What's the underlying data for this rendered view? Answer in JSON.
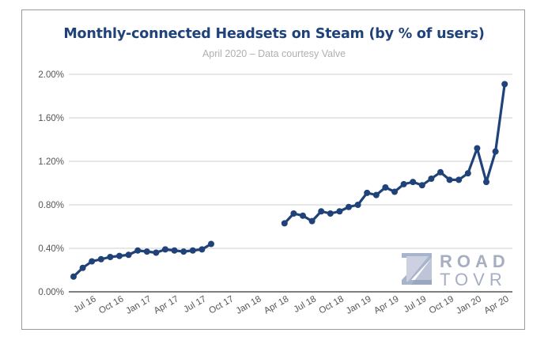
{
  "chart_data": {
    "type": "line",
    "title": "Monthly-connected Headsets on Steam (by % of users)",
    "subtitle": "April 2020 – Data courtesy Valve",
    "xlabel": "",
    "ylabel": "",
    "ylim": [
      0,
      2.0
    ],
    "yticks": [
      0,
      0.4,
      0.8,
      1.2,
      1.6,
      2.0
    ],
    "ytick_labels": [
      "0.00%",
      "0.40%",
      "0.80%",
      "1.20%",
      "1.60%",
      "2.00%"
    ],
    "grid": true,
    "legend": "none",
    "x": [
      "May 16",
      "Jun 16",
      "Jul 16",
      "Aug 16",
      "Sep 16",
      "Oct 16",
      "Nov 16",
      "Dec 16",
      "Jan 17",
      "Feb 17",
      "Mar 17",
      "Apr 17",
      "May 17",
      "Jun 17",
      "Jul 17",
      "Aug 17",
      "Sep 17",
      "Oct 17",
      "Nov 17",
      "Dec 17",
      "Jan 18",
      "Feb 18",
      "Mar 18",
      "Apr 18",
      "May 18",
      "Jun 18",
      "Jul 18",
      "Aug 18",
      "Sep 18",
      "Oct 18",
      "Nov 18",
      "Dec 18",
      "Jan 19",
      "Feb 19",
      "Mar 19",
      "Apr 19",
      "May 19",
      "Jun 19",
      "Jul 19",
      "Aug 19",
      "Sep 19",
      "Oct 19",
      "Nov 19",
      "Dec 19",
      "Jan 20",
      "Feb 20",
      "Mar 20",
      "Apr 20"
    ],
    "xtick_labels": [
      "Jul 16",
      "Oct 16",
      "Jan 17",
      "Apr 17",
      "Jul 17",
      "Oct 17",
      "Jan 18",
      "Apr 18",
      "Jul 18",
      "Oct 18",
      "Jan 19",
      "Apr 19",
      "Jul 19",
      "Oct 19",
      "Jan 20",
      "Apr 20"
    ],
    "series": [
      {
        "name": "Monthly-connected Headsets (% of users)",
        "color": "#1f4279",
        "values": [
          0.14,
          0.22,
          0.28,
          0.3,
          0.32,
          0.33,
          0.34,
          0.38,
          0.37,
          0.36,
          0.39,
          0.38,
          0.37,
          0.38,
          0.39,
          0.44,
          null,
          null,
          null,
          null,
          null,
          null,
          null,
          0.63,
          0.72,
          0.7,
          0.65,
          0.74,
          0.72,
          0.74,
          0.78,
          0.8,
          0.91,
          0.89,
          0.96,
          0.92,
          0.99,
          1.01,
          0.98,
          1.04,
          1.1,
          1.03,
          1.03,
          1.09,
          1.32,
          1.01,
          1.29,
          1.91
        ]
      }
    ]
  },
  "watermark": {
    "logo_icon": "roadtovr-logo-icon",
    "line1": "ROAD",
    "line2": "TOVR"
  }
}
